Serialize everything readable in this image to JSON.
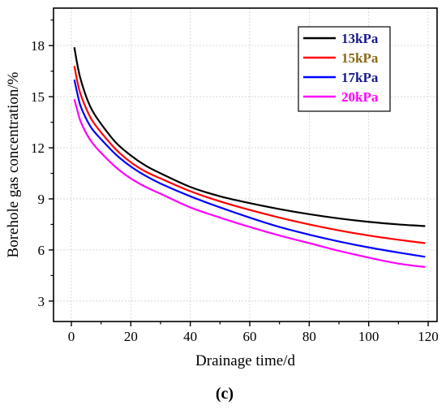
{
  "chart_data": {
    "type": "line",
    "title": "",
    "caption": "(c)",
    "xlabel": "Drainage time/d",
    "ylabel": "Borehole gas concentration/%",
    "xlim": [
      -6,
      123
    ],
    "ylim": [
      1.8,
      20.2
    ],
    "xticks": [
      "0",
      "20",
      "40",
      "60",
      "80",
      "100",
      "120"
    ],
    "yticks": [
      "3",
      "6",
      "9",
      "12",
      "15",
      "18"
    ],
    "xtick_values": [
      0,
      20,
      40,
      60,
      80,
      100,
      120
    ],
    "ytick_values": [
      3,
      6,
      9,
      12,
      15,
      18
    ],
    "grid": true,
    "legend_position": "top-right",
    "series": [
      {
        "name": "13kPa",
        "color": "#000000",
        "label_color": "#1a1a8c",
        "x": [
          1,
          2,
          3,
          5,
          7,
          10,
          15,
          20,
          25,
          30,
          40,
          50,
          60,
          70,
          80,
          90,
          100,
          110,
          119
        ],
        "y": [
          17.9,
          16.9,
          16.1,
          15.0,
          14.2,
          13.4,
          12.3,
          11.55,
          10.95,
          10.5,
          9.7,
          9.15,
          8.75,
          8.4,
          8.1,
          7.85,
          7.65,
          7.5,
          7.4
        ]
      },
      {
        "name": "15kPa",
        "color": "#ff0000",
        "label_color": "#8b6914",
        "x": [
          1,
          2,
          3,
          5,
          7,
          10,
          15,
          20,
          25,
          30,
          40,
          50,
          60,
          70,
          80,
          90,
          100,
          110,
          119
        ],
        "y": [
          16.8,
          15.9,
          15.2,
          14.3,
          13.6,
          12.9,
          11.9,
          11.15,
          10.6,
          10.2,
          9.45,
          8.85,
          8.35,
          7.9,
          7.5,
          7.15,
          6.85,
          6.6,
          6.4
        ]
      },
      {
        "name": "17kPa",
        "color": "#0000ff",
        "label_color": "#1a1a8c",
        "x": [
          1,
          2,
          3,
          5,
          7,
          10,
          15,
          20,
          25,
          30,
          40,
          50,
          60,
          70,
          80,
          90,
          100,
          110,
          119
        ],
        "y": [
          16.0,
          15.2,
          14.5,
          13.7,
          13.1,
          12.5,
          11.6,
          10.9,
          10.35,
          9.9,
          9.15,
          8.5,
          7.9,
          7.35,
          6.9,
          6.5,
          6.15,
          5.85,
          5.6
        ]
      },
      {
        "name": "20kPa",
        "color": "#ff00ff",
        "label_color": "#ff00ff",
        "x": [
          1,
          2,
          3,
          5,
          7,
          10,
          15,
          20,
          25,
          30,
          40,
          50,
          60,
          70,
          80,
          90,
          100,
          110,
          119
        ],
        "y": [
          14.85,
          14.2,
          13.6,
          12.85,
          12.3,
          11.7,
          10.85,
          10.2,
          9.7,
          9.3,
          8.5,
          7.9,
          7.35,
          6.85,
          6.4,
          5.95,
          5.55,
          5.2,
          5.0
        ]
      }
    ]
  }
}
